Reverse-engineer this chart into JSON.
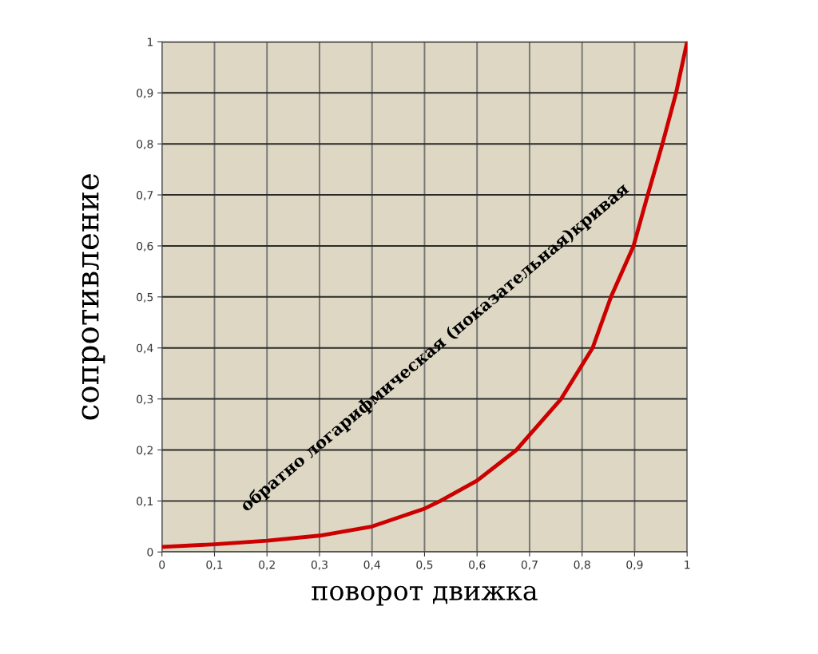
{
  "chart_data": {
    "type": "line",
    "xlabel": "поворот движка",
    "ylabel": "сопротивление",
    "x": [
      0,
      0.1,
      0.2,
      0.3,
      0.4,
      0.5,
      0.53,
      0.6,
      0.675,
      0.76,
      0.82,
      0.855,
      0.898,
      0.925,
      0.953,
      0.979,
      1
    ],
    "series": [
      {
        "color": "#cc0000",
        "values": [
          0.01,
          0.015,
          0.022,
          0.032,
          0.05,
          0.085,
          0.1,
          0.14,
          0.2,
          0.3,
          0.4,
          0.5,
          0.6,
          0.7,
          0.8,
          0.9,
          1
        ]
      }
    ],
    "annotations": [
      "обратно логарифмическая (показательная)кривая"
    ],
    "xlim": [
      0,
      1
    ],
    "ylim": [
      0,
      1
    ],
    "xticks": [
      0,
      {
        "value": 0.1,
        "label": "0,1"
      },
      {
        "value": 0.2,
        "label": "0,2"
      },
      {
        "value": 0.3,
        "label": "0,3"
      },
      {
        "value": 0.4,
        "label": "0,4"
      },
      {
        "value": 0.5,
        "label": "0,5"
      },
      {
        "value": 0.6,
        "label": "0,6"
      },
      {
        "value": 0.7,
        "label": "0,7"
      },
      {
        "value": 0.8,
        "label": "0,8"
      },
      {
        "value": 0.9,
        "label": "0,9"
      },
      1
    ],
    "yticks": [
      0,
      {
        "value": 0.1,
        "label": "0,1"
      },
      {
        "value": 0.2,
        "label": "0,2"
      },
      {
        "value": 0.3,
        "label": "0,3"
      },
      {
        "value": 0.4,
        "label": "0,4"
      },
      {
        "value": 0.5,
        "label": "0,5"
      },
      {
        "value": 0.6,
        "label": "0,6"
      },
      {
        "value": 0.7,
        "label": "0,7"
      },
      {
        "value": 0.8,
        "label": "0,8"
      },
      {
        "value": 0.9,
        "label": "0,9"
      },
      1
    ],
    "grid": true,
    "marker": "none",
    "line_style": "solid"
  }
}
